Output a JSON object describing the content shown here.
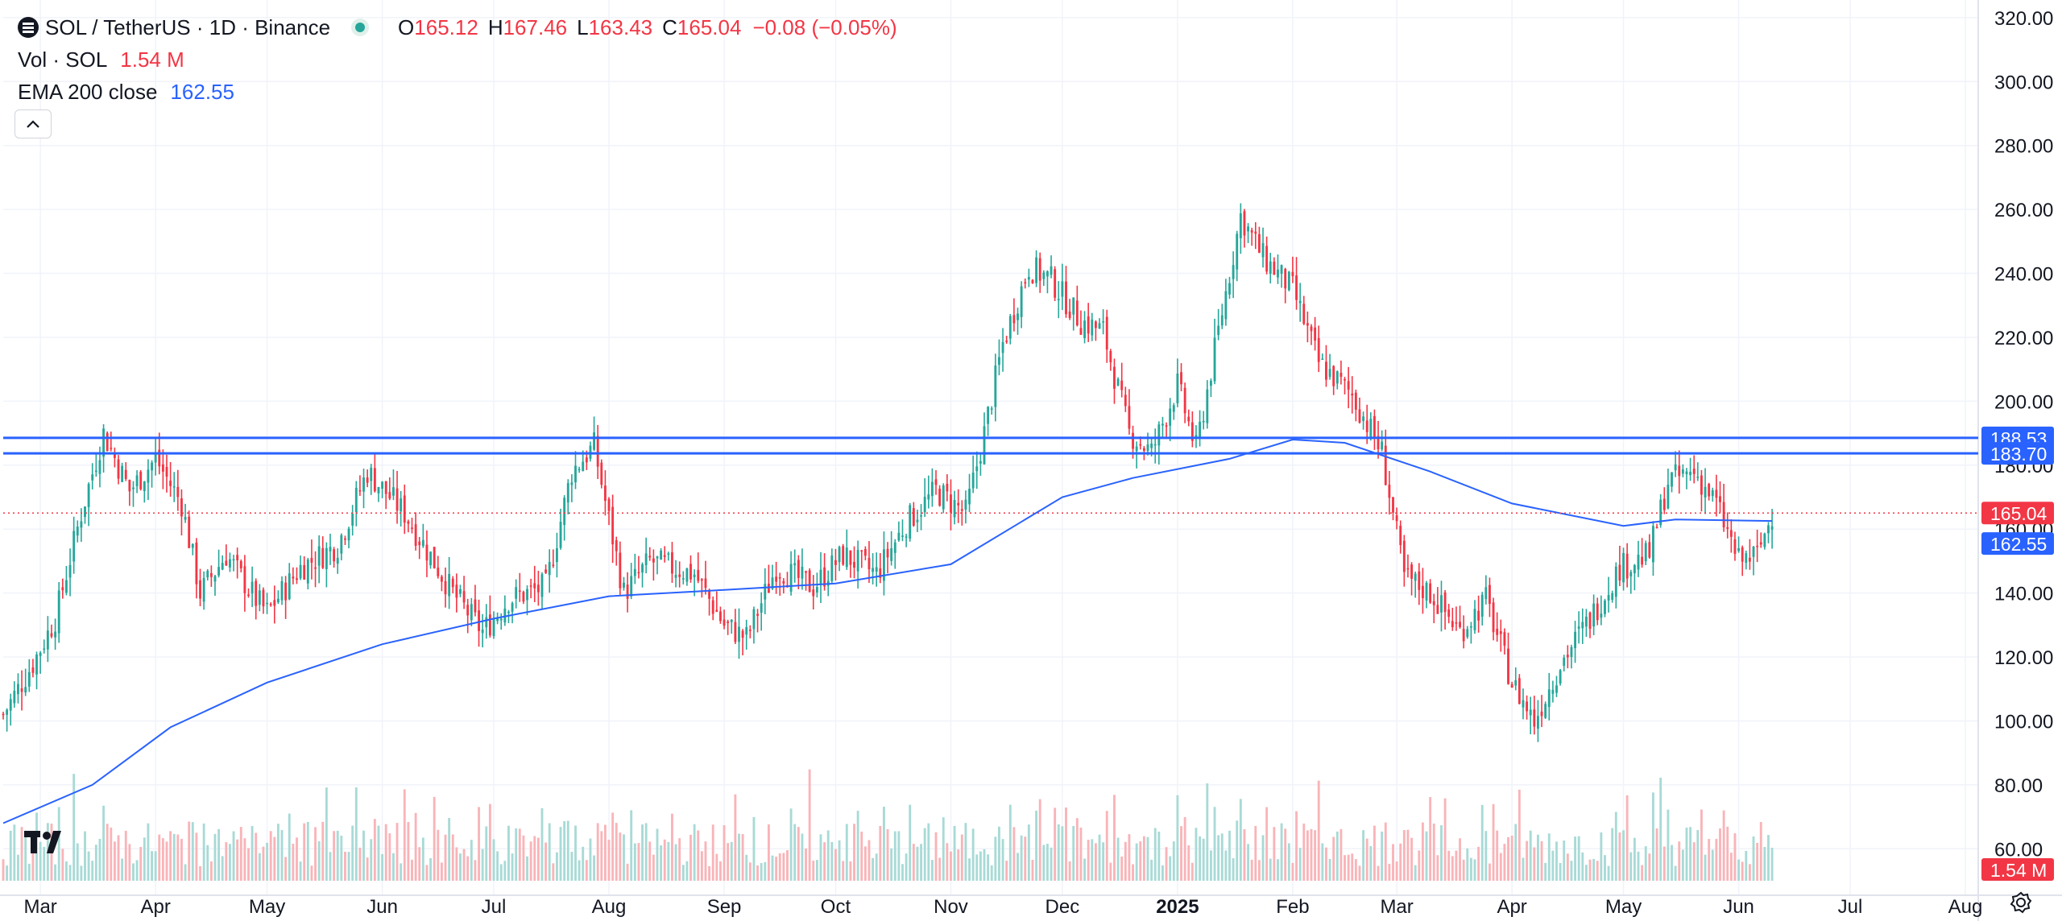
{
  "legend": {
    "symbol": "SOL / TetherUS · 1D · Binance",
    "ohlc": {
      "o_label": "O",
      "o": "165.12",
      "h_label": "H",
      "h": "167.46",
      "l_label": "L",
      "l": "163.43",
      "c_label": "C",
      "c": "165.04",
      "change": "−0.08 (−0.05%)"
    },
    "volume": {
      "label": "Vol · SOL",
      "value": "1.54 M"
    },
    "ema": {
      "label": "EMA 200 close",
      "value": "162.55"
    }
  },
  "icons": {
    "coin": "sol-coin-icon",
    "status": "market-status-dot-icon",
    "collapse": "chevron-up-icon",
    "logo": "tradingview-logo-icon",
    "settings": "gear-icon"
  },
  "colors": {
    "up": "#26a69a",
    "down": "#f23645",
    "ema": "#2962ff",
    "hline": "#2962ff",
    "last_price_line": "#f23645",
    "up_volume": "#a8dad6",
    "down_volume": "#f9b4b8"
  },
  "chart_data": {
    "type": "candlestick",
    "title": "SOL / TetherUS · 1D · Binance",
    "y_axis": {
      "ticks": [
        "320.00",
        "300.00",
        "280.00",
        "260.00",
        "240.00",
        "220.00",
        "200.00",
        "180.00",
        "160.00",
        "140.00",
        "120.00",
        "100.00",
        "80.00",
        "60.00"
      ],
      "tick_values": [
        320,
        300,
        280,
        260,
        240,
        220,
        200,
        180,
        160,
        140,
        120,
        100,
        80,
        60
      ],
      "range": [
        50,
        324
      ]
    },
    "x_axis": {
      "labels": [
        "Mar",
        "Apr",
        "May",
        "Jun",
        "Jul",
        "Aug",
        "Sep",
        "Oct",
        "Nov",
        "Dec",
        "2025",
        "Feb",
        "Mar",
        "Apr",
        "May",
        "Jun",
        "Jul",
        "Aug"
      ],
      "label_dates": [
        "2024-03-01",
        "2024-04-01",
        "2024-05-01",
        "2024-06-01",
        "2024-07-01",
        "2024-08-01",
        "2024-09-01",
        "2024-10-01",
        "2024-11-01",
        "2024-12-01",
        "2025-01-01",
        "2025-02-01",
        "2025-03-01",
        "2025-04-01",
        "2025-05-01",
        "2025-06-01",
        "2025-07-01",
        "2025-08-01"
      ],
      "bold_label": "2025",
      "range_dates": [
        "2024-02-20",
        "2025-08-01"
      ]
    },
    "price_path": {
      "dates": [
        "2024-02-20",
        "2024-02-28",
        "2024-03-05",
        "2024-03-12",
        "2024-03-18",
        "2024-03-25",
        "2024-04-01",
        "2024-04-08",
        "2024-04-13",
        "2024-04-20",
        "2024-04-28",
        "2024-05-01",
        "2024-05-10",
        "2024-05-20",
        "2024-05-28",
        "2024-06-07",
        "2024-06-20",
        "2024-06-28",
        "2024-07-05",
        "2024-07-15",
        "2024-07-22",
        "2024-07-28",
        "2024-08-05",
        "2024-08-12",
        "2024-08-24",
        "2024-09-01",
        "2024-09-07",
        "2024-09-15",
        "2024-09-25",
        "2024-10-03",
        "2024-10-12",
        "2024-10-20",
        "2024-10-28",
        "2024-11-05",
        "2024-11-10",
        "2024-11-15",
        "2024-11-22",
        "2024-11-28",
        "2024-12-06",
        "2024-12-12",
        "2024-12-19",
        "2024-12-25",
        "2025-01-01",
        "2025-01-06",
        "2025-01-13",
        "2025-01-18",
        "2025-01-24",
        "2025-02-01",
        "2025-02-08",
        "2025-02-17",
        "2025-02-25",
        "2025-03-03",
        "2025-03-10",
        "2025-03-18",
        "2025-03-25",
        "2025-04-01",
        "2025-04-07",
        "2025-04-14",
        "2025-04-22",
        "2025-04-30",
        "2025-05-08",
        "2025-05-13",
        "2025-05-20",
        "2025-05-26",
        "2025-06-01",
        "2025-06-06",
        "2025-06-10"
      ],
      "close": [
        102,
        118,
        132,
        165,
        190,
        172,
        182,
        168,
        140,
        152,
        138,
        134,
        148,
        155,
        178,
        165,
        140,
        128,
        138,
        142,
        178,
        186,
        140,
        150,
        146,
        130,
        126,
        148,
        142,
        152,
        146,
        162,
        172,
        165,
        190,
        218,
        242,
        238,
        225,
        222,
        190,
        184,
        205,
        185,
        228,
        258,
        245,
        235,
        212,
        202,
        184,
        145,
        140,
        128,
        138,
        112,
        100,
        118,
        132,
        148,
        152,
        175,
        178,
        168,
        150,
        152,
        165
      ]
    },
    "ema200": {
      "dates": [
        "2024-02-20",
        "2024-03-15",
        "2024-04-05",
        "2024-05-01",
        "2024-06-01",
        "2024-07-01",
        "2024-08-01",
        "2024-09-01",
        "2024-10-01",
        "2024-11-01",
        "2024-12-01",
        "2024-12-20",
        "2025-01-15",
        "2025-02-01",
        "2025-02-15",
        "2025-03-10",
        "2025-04-01",
        "2025-05-01",
        "2025-05-15",
        "2025-06-10"
      ],
      "values": [
        68,
        80,
        98,
        112,
        124,
        132,
        139,
        141,
        143,
        149,
        170,
        176,
        182,
        188,
        187,
        178,
        168,
        161,
        163,
        162.55
      ]
    },
    "horizontal_lines": [
      188.53,
      183.7
    ],
    "last_price": 165.04,
    "price_labels": [
      "188.53",
      "183.70",
      "165.04",
      "162.55"
    ],
    "volume_label": "1.54 M",
    "series": [
      {
        "name": "SOL / TetherUS",
        "kind": "candles"
      },
      {
        "name": "Vol · SOL",
        "kind": "volume"
      },
      {
        "name": "EMA 200 close",
        "kind": "line"
      }
    ]
  }
}
